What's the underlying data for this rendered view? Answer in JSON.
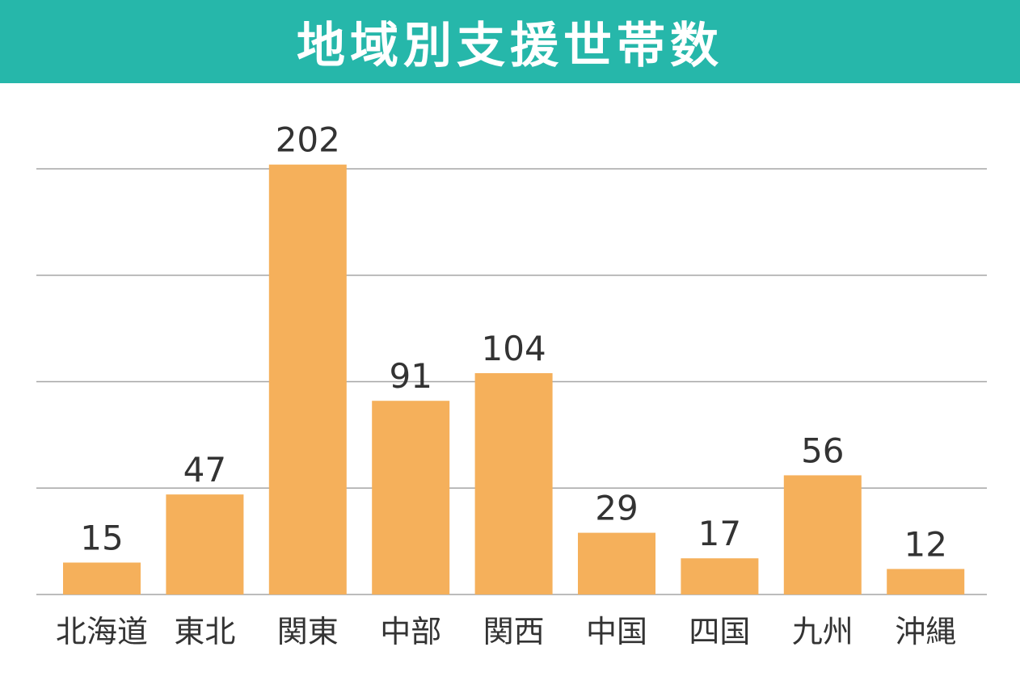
{
  "header": {
    "title": "地域別支援世帯数",
    "bg_color": "#26b7aa"
  },
  "colors": {
    "bar": "#f5b05b",
    "grid": "#a6a6a6",
    "text": "#333333"
  },
  "chart_data": {
    "type": "bar",
    "title": "地域別支援世帯数",
    "categories": [
      "北海道",
      "東北",
      "関東",
      "中部",
      "関西",
      "中国",
      "四国",
      "九州",
      "沖縄"
    ],
    "values": [
      15,
      47,
      202,
      91,
      104,
      29,
      17,
      56,
      12
    ],
    "ylim": [
      0,
      200
    ],
    "grid": true,
    "data_labels": true
  }
}
